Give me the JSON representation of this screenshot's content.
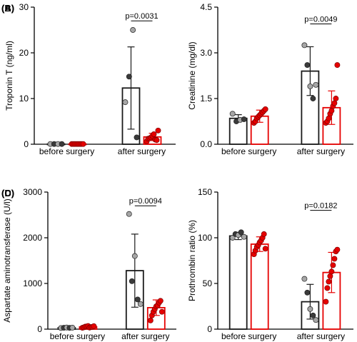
{
  "colors": {
    "group_a": "#1a1a1a",
    "group_b": "#e60000",
    "dot_a_light": "#a6a6a6",
    "dot_a_dark": "#3a3a3a",
    "dot_b": "#e60000"
  },
  "chart_data": [
    {
      "panel": "(A)",
      "type": "bar",
      "ylabel": "Troponin T (ng/ml)",
      "categories": [
        "before surgery",
        "after surgery"
      ],
      "ylim": [
        0,
        30
      ],
      "yticks": [
        0,
        10,
        20,
        30
      ],
      "ytick_labels": [
        "0",
        "10",
        "20",
        "30"
      ],
      "series": [
        {
          "values": [
            0.05,
            12.3
          ],
          "error": [
            0,
            9.0
          ],
          "points": [
            [
              0.05,
              0.05,
              0.05,
              0.05
            ],
            [
              9.2,
              14.8,
              25.0,
              1.5
            ]
          ]
        },
        {
          "values": [
            0.05,
            1.6
          ],
          "error": [
            0,
            0.8
          ],
          "points": [
            [
              0.05,
              0.05,
              0.05,
              0.05,
              0.05,
              0.05,
              0.05,
              0.05,
              0.05
            ],
            [
              0.6,
              1.2,
              1.3,
              1.5,
              1.8,
              2.2,
              1.0,
              0.9,
              3.0
            ]
          ]
        }
      ],
      "annotations": [
        {
          "text": "p=0.0031",
          "y": 27
        }
      ]
    },
    {
      "panel": "(B)",
      "type": "bar",
      "ylabel": "Creatinine (mg/dl)",
      "categories": [
        "before surgery",
        "after surgery"
      ],
      "ylim": [
        0,
        4.5
      ],
      "yticks": [
        0,
        1.5,
        3.0,
        4.5
      ],
      "ytick_labels": [
        "0.0",
        "1.5",
        "3.0",
        "4.5"
      ],
      "series": [
        {
          "values": [
            0.85,
            2.4
          ],
          "error": [
            0.12,
            0.8
          ],
          "points": [
            [
              1.0,
              0.75,
              0.8,
              0.82
            ],
            [
              3.25,
              2.6,
              1.9,
              1.5,
              1.95
            ]
          ]
        },
        {
          "values": [
            0.92,
            1.2
          ],
          "error": [
            0.2,
            0.55
          ],
          "points": [
            [
              0.7,
              0.75,
              0.85,
              0.9,
              0.95,
              1.0,
              1.05,
              1.1,
              1.15
            ],
            [
              0.7,
              0.75,
              0.85,
              1.0,
              1.1,
              1.25,
              1.35,
              1.5,
              2.6
            ]
          ]
        }
      ],
      "annotations": [
        {
          "text": "p=0.0049",
          "y": 3.95
        }
      ]
    },
    {
      "panel": "(C)",
      "type": "bar",
      "ylabel": "Aspartate aminotransferase (U/l)",
      "categories": [
        "before surgery",
        "after surgery"
      ],
      "ylim": [
        0,
        3000
      ],
      "yticks": [
        0,
        1000,
        2000,
        3000
      ],
      "ytick_labels": [
        "0",
        "1000",
        "2000",
        "3000"
      ],
      "series": [
        {
          "values": [
            30,
            1280
          ],
          "error": [
            8,
            800
          ],
          "points": [
            [
              25,
              30,
              35,
              28,
              32
            ],
            [
              2520,
              1050,
              1600,
              650,
              550
            ]
          ]
        },
        {
          "values": [
            50,
            470
          ],
          "error": [
            20,
            170
          ],
          "points": [
            [
              30,
              40,
              55,
              60,
              70,
              35,
              45,
              50,
              65
            ],
            [
              190,
              300,
              380,
              440,
              500,
              520,
              580,
              620,
              380
            ]
          ]
        }
      ],
      "annotations": [
        {
          "text": "p=0.0094",
          "y": 2700
        }
      ]
    },
    {
      "panel": "(D)",
      "type": "bar",
      "ylabel": "Prothrombin ratio (%)",
      "categories": [
        "before surgery",
        "after surgery"
      ],
      "ylim": [
        0,
        150
      ],
      "yticks": [
        0,
        50,
        100,
        150
      ],
      "ytick_labels": [
        "0",
        "50",
        "100",
        "150"
      ],
      "series": [
        {
          "values": [
            102,
            30
          ],
          "error": [
            4,
            19
          ],
          "points": [
            [
              100,
              104,
              103,
              106,
              101
            ],
            [
              55,
              40,
              22,
              15,
              10
            ]
          ]
        },
        {
          "values": [
            93,
            62
          ],
          "error": [
            8,
            22
          ],
          "points": [
            [
              82,
              86,
              90,
              92,
              95,
              97,
              100,
              104,
              88
            ],
            [
              30,
              45,
              52,
              58,
              63,
              70,
              77,
              85,
              87
            ]
          ]
        }
      ],
      "annotations": [
        {
          "text": "p=0.0182",
          "y": 130
        }
      ]
    }
  ]
}
